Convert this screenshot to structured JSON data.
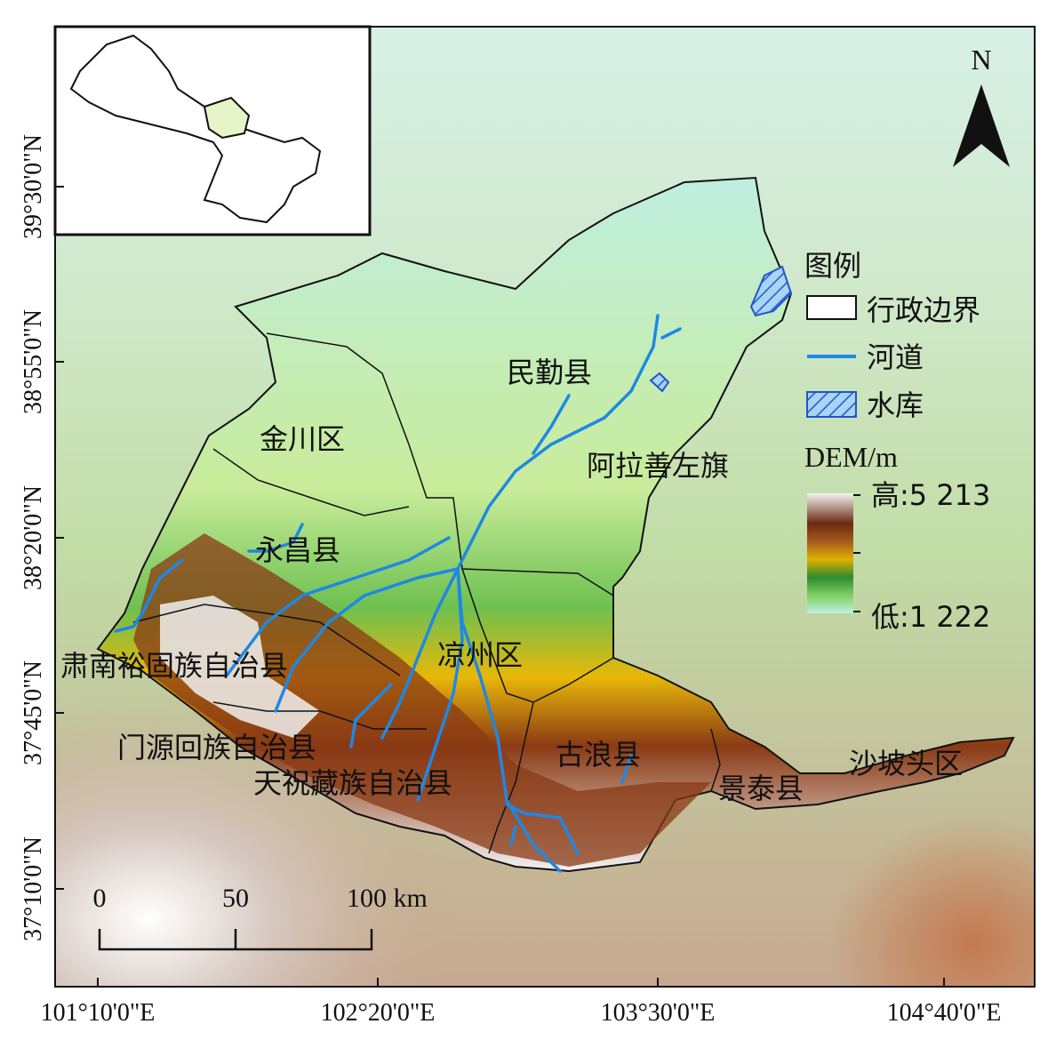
{
  "map": {
    "colors": {
      "river": "#1e88e5",
      "boundary": "#111111",
      "reservoir_stroke": "#2255cc",
      "frame": "#111111",
      "inset_highlight": "#e6f5c8"
    },
    "x_axis_labels": [
      "101°10'0\"E",
      "102°20'0\"E",
      "103°30'0\"E",
      "104°40'0\"E"
    ],
    "y_axis_labels": [
      "39°30'0\"N",
      "38°55'0\"N",
      "38°20'0\"N",
      "37°45'0\"N",
      "37°10'0\"N"
    ],
    "place_labels": {
      "minqin": "民勤县",
      "jinchuan": "金川区",
      "alashan": "阿拉善左旗",
      "yongchang": "永昌县",
      "liangzhou": "凉州区",
      "sunan": "肃南裕固族自治县",
      "menyuan": "门源回族自治县",
      "tianzhu": "天祝藏族自治县",
      "gulang": "古浪县",
      "jingtai": "景泰县",
      "shapotou": "沙坡头区"
    },
    "north_arrow": {
      "label": "N",
      "icon": "north-arrow-icon"
    },
    "legend": {
      "title": "图例",
      "items": [
        {
          "label": "行政边界",
          "icon": "boundary-swatch-icon"
        },
        {
          "label": "河道",
          "icon": "river-line-icon"
        },
        {
          "label": "水库",
          "icon": "reservoir-hatch-icon"
        }
      ],
      "dem_title": "DEM/m",
      "dem_high": "高:5 213",
      "dem_low": "低:1 222",
      "dem_ramp": [
        "#f4f4f4",
        "#6b2a10",
        "#a45a1e",
        "#e0b000",
        "#2e8b30",
        "#7fd060",
        "#bff0e6"
      ]
    },
    "scale_bar": {
      "labels": [
        "0",
        "50",
        "100 km"
      ]
    }
  }
}
